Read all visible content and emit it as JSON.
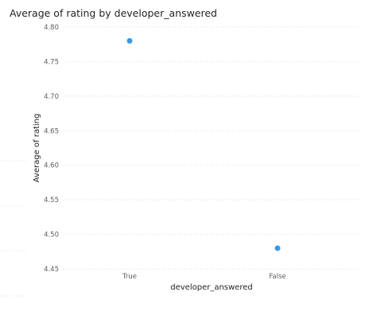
{
  "chart_data": {
    "type": "scatter",
    "title": "Average of rating by developer_answered",
    "xlabel": "developer_answered",
    "ylabel": "Average of rating",
    "categories": [
      "True",
      "False"
    ],
    "values": [
      4.78,
      4.48
    ],
    "ylim": [
      4.45,
      4.8
    ],
    "yticks": [
      "4.80",
      "4.75",
      "4.70",
      "4.65",
      "4.60",
      "4.55",
      "4.50",
      "4.45"
    ],
    "grid": true,
    "series_color": "#3599e9",
    "grid_color": "#d9d9d9"
  }
}
